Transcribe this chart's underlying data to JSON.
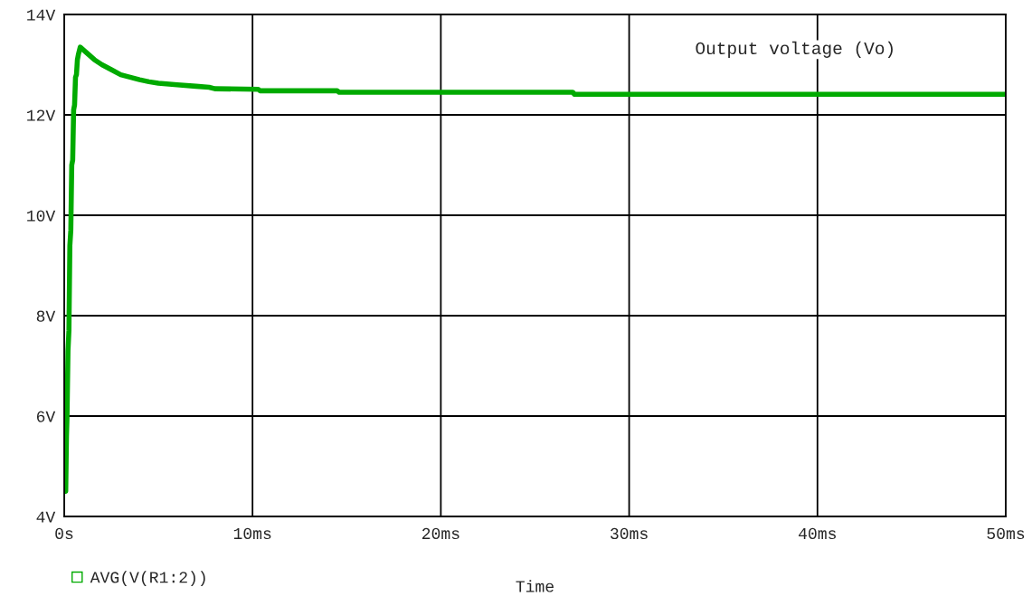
{
  "chart_data": {
    "type": "line",
    "xlabel": "Time",
    "annotations": [
      "Output voltage (Vo)"
    ],
    "xlim": [
      0,
      50
    ],
    "ylim": [
      4,
      14
    ],
    "xticks": [
      {
        "value": 0,
        "label": "0s"
      },
      {
        "value": 10,
        "label": "10ms"
      },
      {
        "value": 20,
        "label": "20ms"
      },
      {
        "value": 30,
        "label": "30ms"
      },
      {
        "value": 40,
        "label": "40ms"
      },
      {
        "value": 50,
        "label": "50ms"
      }
    ],
    "yticks": [
      {
        "value": 4,
        "label": "4V"
      },
      {
        "value": 6,
        "label": "6V"
      },
      {
        "value": 8,
        "label": "8V"
      },
      {
        "value": 10,
        "label": "10V"
      },
      {
        "value": 12,
        "label": "12V"
      },
      {
        "value": 14,
        "label": "14V"
      }
    ],
    "grid": true,
    "legend": "bottom left",
    "marker": "none",
    "line_style": "solid",
    "series": [
      {
        "name": "AVG(V(R1:2))",
        "color": "#00aa00",
        "x": [
          0,
          0.08,
          0.12,
          0.15,
          0.2,
          0.25,
          0.3,
          0.35,
          0.4,
          0.45,
          0.5,
          0.55,
          0.6,
          0.65,
          0.7,
          0.75,
          0.85,
          1.0,
          1.3,
          1.6,
          2.0,
          2.5,
          3.0,
          3.5,
          4.0,
          4.5,
          5.0,
          6.0,
          7.0,
          7.7,
          8.0,
          10.3,
          10.4,
          14.5,
          14.6,
          27.0,
          27.1,
          50
        ],
        "values": [
          4.7,
          4.5,
          5.6,
          6.0,
          7.3,
          7.7,
          9.4,
          9.7,
          11.0,
          11.1,
          12.1,
          12.2,
          12.75,
          12.8,
          13.1,
          13.2,
          13.35,
          13.3,
          13.2,
          13.1,
          13.0,
          12.9,
          12.8,
          12.75,
          12.7,
          12.66,
          12.63,
          12.6,
          12.57,
          12.55,
          12.52,
          12.51,
          12.48,
          12.48,
          12.45,
          12.45,
          12.41,
          12.41
        ]
      }
    ]
  }
}
